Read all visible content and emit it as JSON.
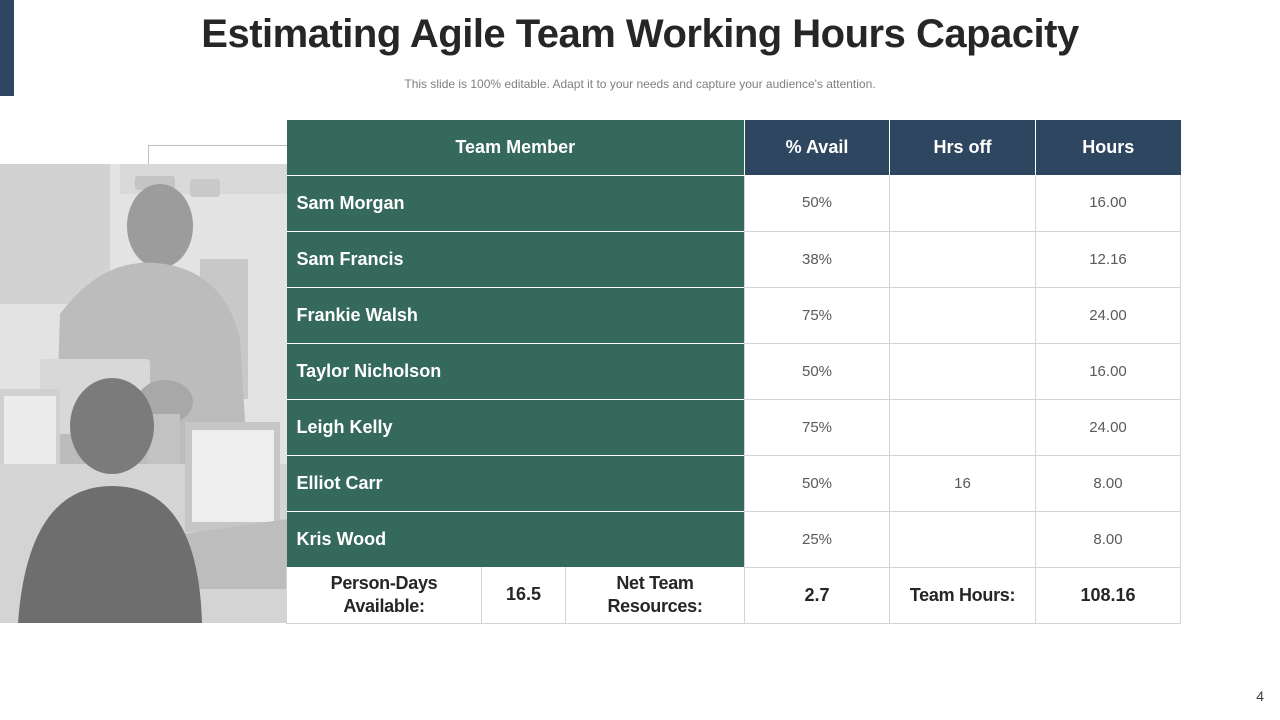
{
  "slide": {
    "title": "Estimating Agile Team Working Hours Capacity",
    "subtitle": "This slide is 100% editable. Adapt it to your needs and capture your audience's attention.",
    "page_number": "4"
  },
  "colors": {
    "green": "#35695b",
    "navy": "#2f4660"
  },
  "table": {
    "headers": [
      "Team Member",
      "% Avail",
      "Hrs off",
      "Hours"
    ],
    "rows": [
      {
        "name": "Sam Morgan",
        "avail": "50%",
        "hrs_off": "",
        "hours": "16.00"
      },
      {
        "name": "Sam Francis",
        "avail": "38%",
        "hrs_off": "",
        "hours": "12.16"
      },
      {
        "name": "Frankie Walsh",
        "avail": "75%",
        "hrs_off": "",
        "hours": "24.00"
      },
      {
        "name": "Taylor Nicholson",
        "avail": "50%",
        "hrs_off": "",
        "hours": "16.00"
      },
      {
        "name": "Leigh Kelly",
        "avail": "75%",
        "hrs_off": "",
        "hours": "24.00"
      },
      {
        "name": "Elliot Carr",
        "avail": "50%",
        "hrs_off": "16",
        "hours": "8.00"
      },
      {
        "name": "Kris Wood",
        "avail": "25%",
        "hrs_off": "",
        "hours": "8.00"
      }
    ],
    "footer": {
      "person_days_label": "Person-Days Available:",
      "person_days_value": "16.5",
      "net_team_label": "Net Team Resources:",
      "net_team_value": "2.7",
      "team_hours_label": "Team Hours:",
      "team_hours_value": "108.16"
    }
  }
}
